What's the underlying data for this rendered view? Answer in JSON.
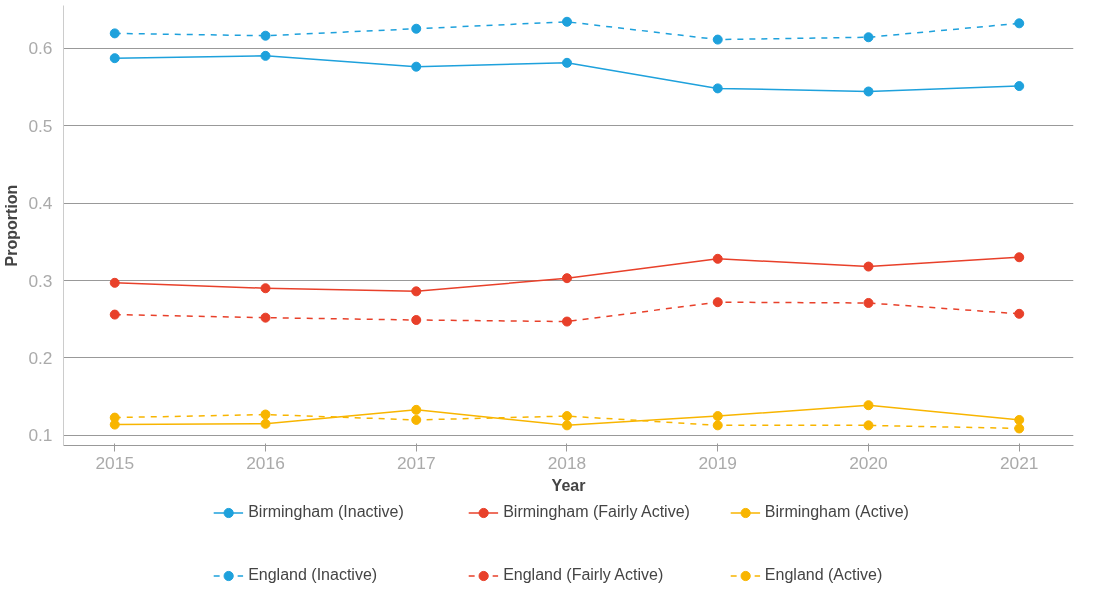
{
  "chart_data": {
    "type": "line",
    "xlabel": "Year",
    "ylabel": "Proportion",
    "x": [
      2015,
      2016,
      2017,
      2018,
      2019,
      2020,
      2021
    ],
    "xlim": [
      2014.66,
      2021.36
    ],
    "ylim": [
      0.087,
      0.655
    ],
    "xticks": [
      2015,
      2016,
      2017,
      2018,
      2019,
      2020,
      2021
    ],
    "yticks": [
      0.1,
      0.2,
      0.3,
      0.4,
      0.5,
      0.6
    ],
    "grid": "y",
    "legend": "bottom",
    "marker": "circle",
    "series": [
      {
        "name": "Birmingham (Inactive)",
        "color": "#1ea1dc",
        "line_style": "solid",
        "values": [
          0.587,
          0.59,
          0.576,
          0.581,
          0.548,
          0.544,
          0.551
        ]
      },
      {
        "name": "Birmingham (Fairly Active)",
        "color": "#e8402a",
        "line_style": "solid",
        "values": [
          0.297,
          0.29,
          0.286,
          0.303,
          0.328,
          0.318,
          0.33
        ]
      },
      {
        "name": "Birmingham (Active)",
        "color": "#f8b500",
        "line_style": "solid",
        "values": [
          0.114,
          0.115,
          0.133,
          0.113,
          0.125,
          0.139,
          0.12
        ]
      },
      {
        "name": "England (Inactive)",
        "color": "#1ea1dc",
        "line_style": "dashed",
        "values": [
          0.619,
          0.616,
          0.625,
          0.634,
          0.611,
          0.614,
          0.632
        ]
      },
      {
        "name": "England (Fairly Active)",
        "color": "#e8402a",
        "line_style": "dashed",
        "values": [
          0.256,
          0.252,
          0.249,
          0.247,
          0.272,
          0.271,
          0.257
        ]
      },
      {
        "name": "England (Active)",
        "color": "#f8b500",
        "line_style": "dashed",
        "values": [
          0.123,
          0.127,
          0.12,
          0.125,
          0.113,
          0.113,
          0.109
        ]
      }
    ]
  }
}
